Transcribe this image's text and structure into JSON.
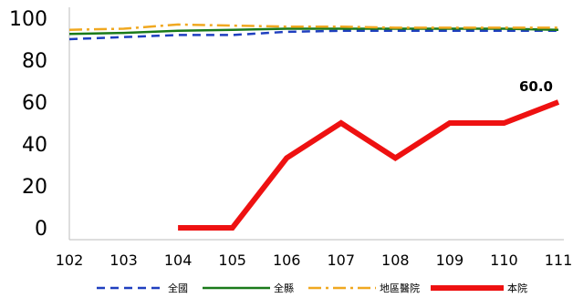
{
  "chart_data": {
    "type": "line",
    "x": [
      "102",
      "103",
      "104",
      "105",
      "106",
      "107",
      "108",
      "109",
      "110",
      "111"
    ],
    "ylim": [
      0,
      100
    ],
    "yticks": [
      0,
      20,
      40,
      60,
      80,
      100
    ],
    "grid": false,
    "legend_position": "bottom",
    "series": [
      {
        "name": "全國",
        "color": "#1f3fbf",
        "dash": "dashed",
        "values": [
          90,
          91,
          92,
          92,
          93.5,
          94,
          94,
          94,
          94,
          94
        ]
      },
      {
        "name": "全縣",
        "color": "#1a7a1a",
        "dash": "solid",
        "values": [
          92.5,
          93,
          94,
          94.5,
          95,
          95,
          95,
          95,
          95,
          94.5
        ]
      },
      {
        "name": "地區醫院",
        "color": "#f0a820",
        "dash": "dashdot",
        "values": [
          94.5,
          95,
          97,
          96.5,
          96,
          96,
          95.5,
          95.5,
          95.5,
          95.5
        ]
      },
      {
        "name": "本院",
        "color": "#ee1111",
        "dash": "solid-thick",
        "values": [
          null,
          null,
          0,
          0,
          33.3,
          50,
          33.3,
          50,
          50,
          60
        ]
      }
    ],
    "annotations": [
      {
        "series": "本院",
        "x": "111",
        "text": "60.0"
      }
    ]
  }
}
